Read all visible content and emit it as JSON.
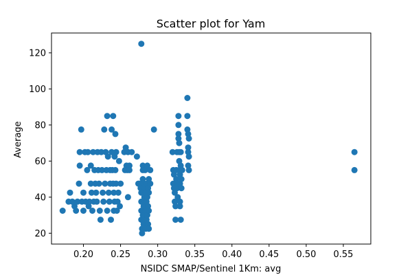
{
  "chart_data": {
    "type": "scatter",
    "title": "Scatter plot for Yam",
    "xlabel": "NSIDC SMAP/Sentinel 1Km: avg",
    "ylabel": "Average",
    "xlim": [
      0.157,
      0.587
    ],
    "ylim": [
      14,
      131
    ],
    "xticks": [
      "0.20",
      "0.25",
      "0.30",
      "0.35",
      "0.40",
      "0.45",
      "0.50",
      "0.55"
    ],
    "yticks": [
      "20",
      "40",
      "60",
      "80",
      "100",
      "120"
    ],
    "grid": false,
    "legend": null,
    "color": "#1f77b4",
    "series": [
      {
        "points": [
          [
            0.172,
            32.5
          ],
          [
            0.18,
            37.5
          ],
          [
            0.182,
            42.5
          ],
          [
            0.185,
            37.5
          ],
          [
            0.188,
            35
          ],
          [
            0.19,
            32.5
          ],
          [
            0.192,
            37.5
          ],
          [
            0.194,
            47.5
          ],
          [
            0.195,
            57.5
          ],
          [
            0.195,
            65
          ],
          [
            0.197,
            77.5
          ],
          [
            0.198,
            37.5
          ],
          [
            0.2,
            42.5
          ],
          [
            0.2,
            32.5
          ],
          [
            0.202,
            65
          ],
          [
            0.203,
            37.5
          ],
          [
            0.205,
            55
          ],
          [
            0.206,
            65
          ],
          [
            0.207,
            35
          ],
          [
            0.208,
            37.5
          ],
          [
            0.21,
            57.5
          ],
          [
            0.21,
            47.5
          ],
          [
            0.211,
            42.5
          ],
          [
            0.212,
            32.5
          ],
          [
            0.213,
            65
          ],
          [
            0.214,
            37.5
          ],
          [
            0.215,
            55
          ],
          [
            0.216,
            47.5
          ],
          [
            0.217,
            42.5
          ],
          [
            0.218,
            37.5
          ],
          [
            0.219,
            65
          ],
          [
            0.22,
            55
          ],
          [
            0.221,
            47.5
          ],
          [
            0.222,
            32.5
          ],
          [
            0.223,
            27.5
          ],
          [
            0.224,
            65
          ],
          [
            0.225,
            55
          ],
          [
            0.226,
            42.5
          ],
          [
            0.227,
            37.5
          ],
          [
            0.228,
            77.5
          ],
          [
            0.229,
            47.5
          ],
          [
            0.23,
            65
          ],
          [
            0.231,
            55
          ],
          [
            0.232,
            85
          ],
          [
            0.232,
            32.5
          ],
          [
            0.233,
            62.5
          ],
          [
            0.234,
            42.5
          ],
          [
            0.235,
            37.5
          ],
          [
            0.236,
            55
          ],
          [
            0.236,
            47.5
          ],
          [
            0.237,
            27.5
          ],
          [
            0.238,
            65
          ],
          [
            0.238,
            77.5
          ],
          [
            0.239,
            55
          ],
          [
            0.24,
            85
          ],
          [
            0.24,
            47.5
          ],
          [
            0.241,
            42.5
          ],
          [
            0.241,
            32.5
          ],
          [
            0.242,
            62.5
          ],
          [
            0.242,
            37.5
          ],
          [
            0.243,
            75
          ],
          [
            0.243,
            55
          ],
          [
            0.244,
            65
          ],
          [
            0.244,
            47.5
          ],
          [
            0.245,
            32.5
          ],
          [
            0.246,
            37.5
          ],
          [
            0.247,
            42.5
          ],
          [
            0.248,
            60
          ],
          [
            0.249,
            35
          ],
          [
            0.25,
            47.5
          ],
          [
            0.255,
            65
          ],
          [
            0.256,
            55
          ],
          [
            0.257,
            67.5
          ],
          [
            0.258,
            57.5
          ],
          [
            0.259,
            55
          ],
          [
            0.26,
            40
          ],
          [
            0.26,
            65
          ],
          [
            0.262,
            57.5
          ],
          [
            0.262,
            55
          ],
          [
            0.265,
            65
          ],
          [
            0.272,
            62.5
          ],
          [
            0.274,
            47.5
          ],
          [
            0.276,
            47.5
          ],
          [
            0.277,
            45
          ],
          [
            0.278,
            125
          ],
          [
            0.278,
            42.5
          ],
          [
            0.278,
            37.5
          ],
          [
            0.278,
            32.5
          ],
          [
            0.278,
            27.5
          ],
          [
            0.279,
            22.5
          ],
          [
            0.279,
            20
          ],
          [
            0.28,
            30
          ],
          [
            0.28,
            55
          ],
          [
            0.28,
            57.5
          ],
          [
            0.28,
            50
          ],
          [
            0.281,
            42.5
          ],
          [
            0.281,
            35
          ],
          [
            0.281,
            25
          ],
          [
            0.282,
            47.5
          ],
          [
            0.282,
            40
          ],
          [
            0.282,
            30
          ],
          [
            0.283,
            55
          ],
          [
            0.283,
            45
          ],
          [
            0.283,
            37.5
          ],
          [
            0.283,
            27.5
          ],
          [
            0.284,
            42.5
          ],
          [
            0.284,
            32.5
          ],
          [
            0.284,
            22.5
          ],
          [
            0.285,
            47.5
          ],
          [
            0.285,
            37.5
          ],
          [
            0.285,
            27.5
          ],
          [
            0.286,
            57.5
          ],
          [
            0.286,
            40
          ],
          [
            0.286,
            30
          ],
          [
            0.287,
            45
          ],
          [
            0.287,
            35
          ],
          [
            0.287,
            25
          ],
          [
            0.288,
            50
          ],
          [
            0.288,
            42.5
          ],
          [
            0.288,
            32.5
          ],
          [
            0.288,
            22.5
          ],
          [
            0.29,
            55
          ],
          [
            0.29,
            47.5
          ],
          [
            0.295,
            77.5
          ],
          [
            0.32,
            65
          ],
          [
            0.321,
            55
          ],
          [
            0.321,
            47.5
          ],
          [
            0.322,
            52.5
          ],
          [
            0.322,
            45
          ],
          [
            0.323,
            42.5
          ],
          [
            0.323,
            37.5
          ],
          [
            0.324,
            35
          ],
          [
            0.324,
            27.5
          ],
          [
            0.325,
            55
          ],
          [
            0.325,
            50
          ],
          [
            0.326,
            65
          ],
          [
            0.326,
            45
          ],
          [
            0.327,
            40
          ],
          [
            0.327,
            47.5
          ],
          [
            0.328,
            85
          ],
          [
            0.328,
            80
          ],
          [
            0.328,
            75
          ],
          [
            0.328,
            72.5
          ],
          [
            0.329,
            70
          ],
          [
            0.329,
            65
          ],
          [
            0.329,
            60
          ],
          [
            0.329,
            55
          ],
          [
            0.33,
            52.5
          ],
          [
            0.33,
            47.5
          ],
          [
            0.33,
            37.5
          ],
          [
            0.33,
            35
          ],
          [
            0.331,
            27.5
          ],
          [
            0.331,
            65
          ],
          [
            0.331,
            57.5
          ],
          [
            0.332,
            45
          ],
          [
            0.332,
            50
          ],
          [
            0.333,
            55
          ],
          [
            0.34,
            95
          ],
          [
            0.34,
            85
          ],
          [
            0.34,
            77.5
          ],
          [
            0.341,
            75
          ],
          [
            0.341,
            67.5
          ],
          [
            0.341,
            65
          ],
          [
            0.341,
            57.5
          ],
          [
            0.342,
            55
          ],
          [
            0.342,
            62.5
          ],
          [
            0.342,
            72.5
          ],
          [
            0.565,
            65
          ],
          [
            0.565,
            55
          ]
        ]
      }
    ]
  }
}
